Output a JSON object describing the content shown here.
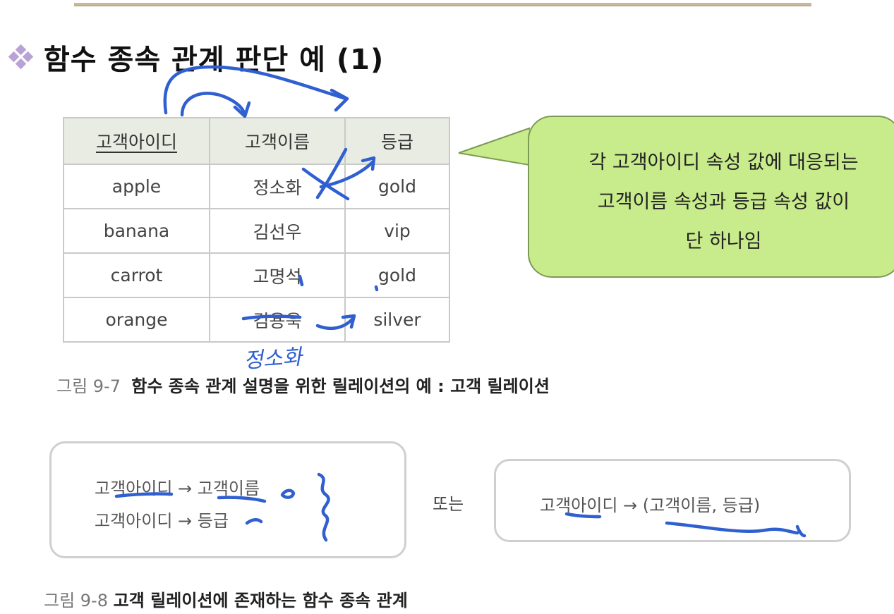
{
  "title": "함수 종속 관계 판단 예 (1)",
  "table": {
    "headers": [
      "고객아이디",
      "고객이름",
      "등급"
    ],
    "rows": [
      [
        "apple",
        "정소화",
        "gold"
      ],
      [
        "banana",
        "김선우",
        "vip"
      ],
      [
        "carrot",
        "고명석",
        "gold"
      ],
      [
        "orange",
        "김용욱",
        "silver"
      ]
    ]
  },
  "handwriting": "정소화",
  "callout": {
    "line1": "각 고객아이디 속성 값에 대응되는",
    "line2": "고객이름 속성과 등급 속성 값이",
    "line3": "단 하나임"
  },
  "fig1": {
    "number": "그림 9-7",
    "text": "함수 종속 관계 설명을 위한 릴레이션의 예 : 고객 릴레이션"
  },
  "fd": {
    "line1": "고객아이디 → 고객이름",
    "line2": "고객아이디 → 등급",
    "or": "또는",
    "combined": "고객아이디 → (고객이름, 등급)"
  },
  "fig2": {
    "number": "그림 9-8",
    "text": "고객 릴레이션에 존재하는 함수 종속 관계"
  },
  "colors": {
    "callout_fill": "#c8eb8c",
    "pen": "#2f5fd0",
    "header_fill": "#e9ece2"
  }
}
